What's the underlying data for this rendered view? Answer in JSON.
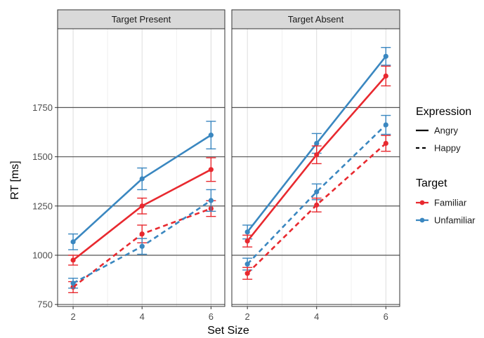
{
  "chart_data": {
    "type": "line",
    "xlabel": "Set Size",
    "ylabel": "RT [ms]",
    "x": [
      2,
      4,
      6
    ],
    "ylim": [
      740,
      2150
    ],
    "yticks": [
      750,
      1000,
      1250,
      1500,
      1750
    ],
    "xticks": [
      2,
      4,
      6
    ],
    "colors": {
      "Familiar": "#e8292f",
      "Unfamiliar": "#3a87c0"
    },
    "panels": [
      {
        "title": "Target Present",
        "series": [
          {
            "target": "Unfamiliar",
            "expression": "Angry",
            "values": [
              1068,
              1388,
              1610
            ],
            "err": [
              40,
              55,
              70
            ]
          },
          {
            "target": "Familiar",
            "expression": "Angry",
            "values": [
              975,
              1250,
              1435
            ],
            "err": [
              25,
              40,
              60
            ]
          },
          {
            "target": "Familiar",
            "expression": "Happy",
            "values": [
              838,
              1108,
              1237
            ],
            "err": [
              28,
              45,
              40
            ]
          },
          {
            "target": "Unfamiliar",
            "expression": "Happy",
            "values": [
              858,
              1045,
              1278
            ],
            "err": [
              25,
              40,
              55
            ]
          }
        ]
      },
      {
        "title": "Target Absent",
        "series": [
          {
            "target": "Unfamiliar",
            "expression": "Angry",
            "values": [
              1118,
              1568,
              2010
            ],
            "err": [
              35,
              50,
              45
            ]
          },
          {
            "target": "Familiar",
            "expression": "Angry",
            "values": [
              1072,
              1510,
              1910
            ],
            "err": [
              30,
              45,
              50
            ]
          },
          {
            "target": "Unfamiliar",
            "expression": "Happy",
            "values": [
              955,
              1322,
              1662
            ],
            "err": [
              30,
              40,
              48
            ]
          },
          {
            "target": "Familiar",
            "expression": "Happy",
            "values": [
              908,
              1255,
              1568
            ],
            "err": [
              30,
              35,
              40
            ]
          }
        ]
      }
    ],
    "legend": {
      "placement": "right",
      "expression_title": "Expression",
      "expression_items": [
        {
          "label": "Angry",
          "linetype": "solid"
        },
        {
          "label": "Happy",
          "linetype": "dashed"
        }
      ],
      "target_title": "Target",
      "target_items": [
        {
          "label": "Familiar",
          "color": "#e8292f"
        },
        {
          "label": "Unfamiliar",
          "color": "#3a87c0"
        }
      ]
    }
  }
}
